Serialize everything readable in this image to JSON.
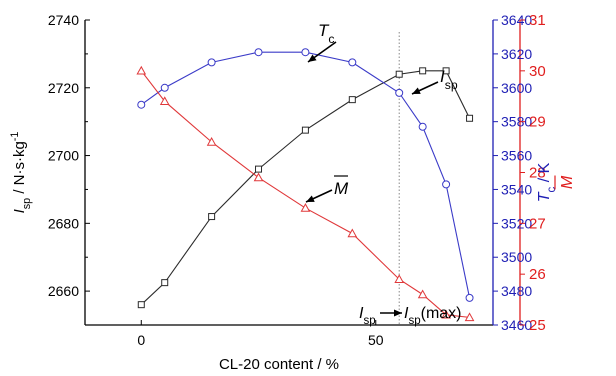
{
  "chart_data": {
    "type": "line",
    "xlabel": "CL-20 content / %",
    "xlim": [
      -12,
      75
    ],
    "xticks": [
      0,
      50
    ],
    "colors": {
      "isp": "#2b2b2b",
      "tc": "#3b3bc8",
      "m": "#e0383a",
      "vline": "#888888"
    },
    "axes": {
      "left": {
        "label_main": "I",
        "label_sub": "sp",
        "label_rest": " / N·s·kg",
        "label_sup": "-1",
        "lim": [
          2650,
          2740
        ],
        "ticks": [
          2660,
          2680,
          2700,
          2720,
          2740
        ],
        "color": "#000000"
      },
      "right1": {
        "label_main": "T",
        "label_sub": "c",
        "label_rest": " / K",
        "lim": [
          3460,
          3640
        ],
        "ticks": [
          3460,
          3480,
          3500,
          3520,
          3540,
          3560,
          3580,
          3600,
          3620,
          3640
        ],
        "color": "#1f1fb4"
      },
      "right2": {
        "label_main": "M",
        "lim": [
          25,
          31
        ],
        "ticks": [
          25,
          26,
          27,
          28,
          29,
          30,
          31
        ],
        "color": "#e01e1e"
      }
    },
    "series": [
      {
        "key": "isp",
        "axis": "left",
        "marker": "square",
        "x": [
          0,
          5,
          15,
          25,
          35,
          45,
          55,
          60,
          65,
          70
        ],
        "y": [
          2656,
          2662.5,
          2682,
          2696,
          2707.5,
          2716.5,
          2724,
          2725,
          2725,
          2711
        ]
      },
      {
        "key": "tc",
        "axis": "right1",
        "marker": "circle",
        "x": [
          0,
          5,
          15,
          25,
          35,
          45,
          55,
          60,
          65,
          70
        ],
        "y": [
          3590,
          3600,
          3615,
          3621,
          3621,
          3615,
          3597,
          3577,
          3543,
          3476
        ]
      },
      {
        "key": "m",
        "axis": "right2",
        "marker": "triangle",
        "x": [
          0,
          5,
          15,
          25,
          35,
          45,
          55,
          60,
          65,
          70
        ],
        "y": [
          30.0,
          29.4,
          28.6,
          27.9,
          27.3,
          26.8,
          25.9,
          25.6,
          25.2,
          25.15
        ]
      }
    ],
    "vline_x": 55,
    "annotations": {
      "tc": {
        "main": "T",
        "sub": "c"
      },
      "isp": {
        "main": "I",
        "sub": "sp"
      },
      "m": {
        "main": "M"
      },
      "bottom": {
        "a_main": "I",
        "a_sub": "sp",
        "b_main": "I",
        "b_sub": "sp",
        "b_rest": "(max)"
      }
    }
  }
}
